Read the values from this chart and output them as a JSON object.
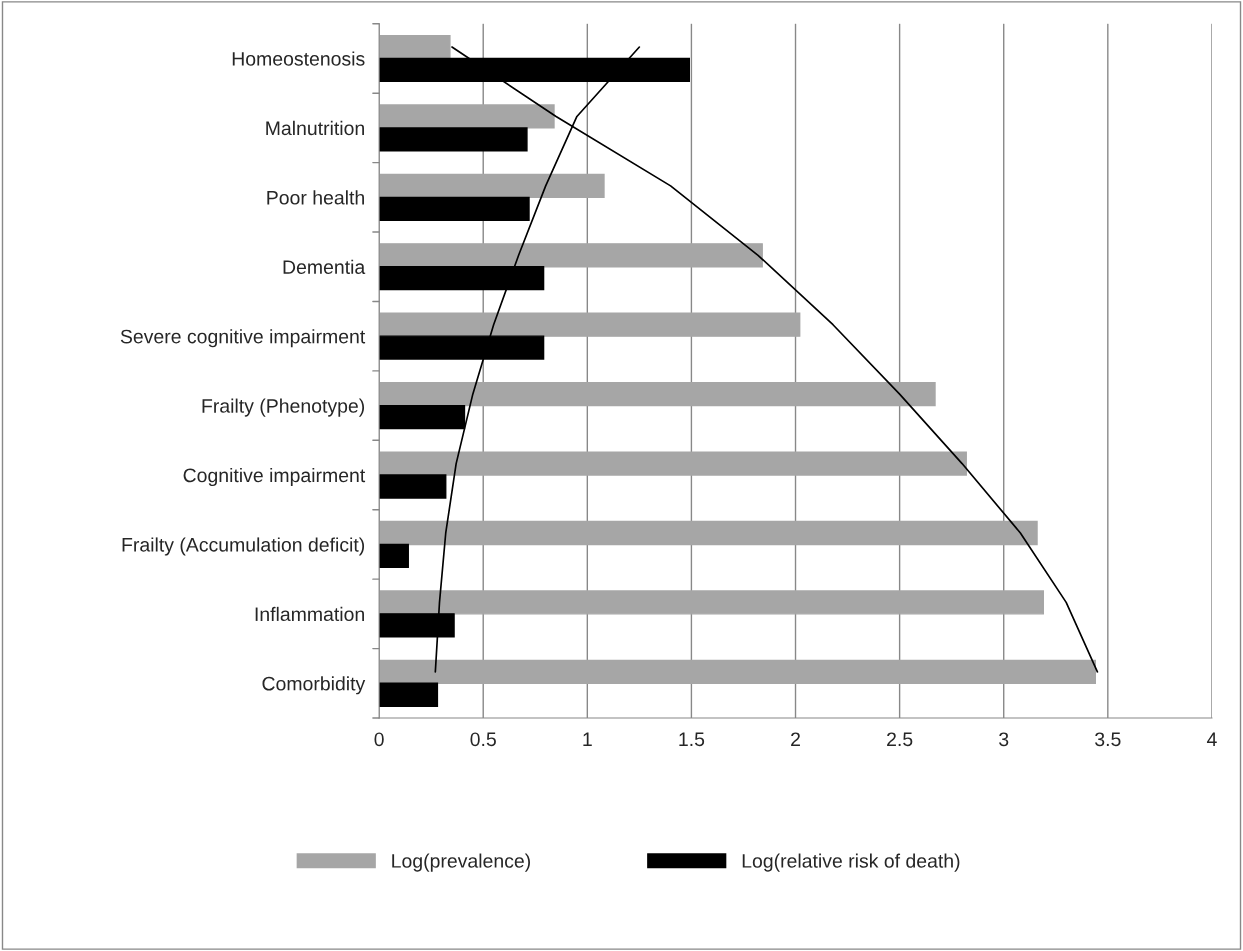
{
  "chart_data": {
    "type": "bar",
    "orientation": "horizontal",
    "categories": [
      "Homeostenosis",
      "Malnutrition",
      "Poor health",
      "Dementia",
      "Severe cognitive impairment",
      "Frailty (Phenotype)",
      "Cognitive impairment",
      "Frailty (Accumulation deficit)",
      "Inflammation",
      "Comorbidity"
    ],
    "series": [
      {
        "name": "Log(prevalence)",
        "color": "#a6a6a6",
        "values": [
          0.34,
          0.84,
          1.08,
          1.84,
          2.02,
          2.67,
          2.82,
          3.16,
          3.19,
          3.44
        ]
      },
      {
        "name": "Log(relative risk of death)",
        "color": "#000000",
        "values": [
          1.49,
          0.71,
          0.72,
          0.79,
          0.79,
          0.41,
          0.32,
          0.14,
          0.36,
          0.28
        ]
      },
      {
        "type": "line",
        "color": "#000000",
        "values": [
          0.35,
          0.85,
          1.4,
          1.82,
          2.18,
          2.5,
          2.8,
          3.08,
          3.3,
          3.45
        ]
      },
      {
        "type": "line",
        "color": "#000000",
        "values": [
          1.25,
          0.95,
          0.8,
          0.67,
          0.55,
          0.45,
          0.37,
          0.32,
          0.29,
          0.27
        ]
      }
    ],
    "xlim": [
      0,
      4
    ],
    "xticks": [
      0,
      0.5,
      1,
      1.5,
      2,
      2.5,
      3,
      3.5,
      4
    ],
    "grid": "x",
    "legend": "bottom"
  }
}
